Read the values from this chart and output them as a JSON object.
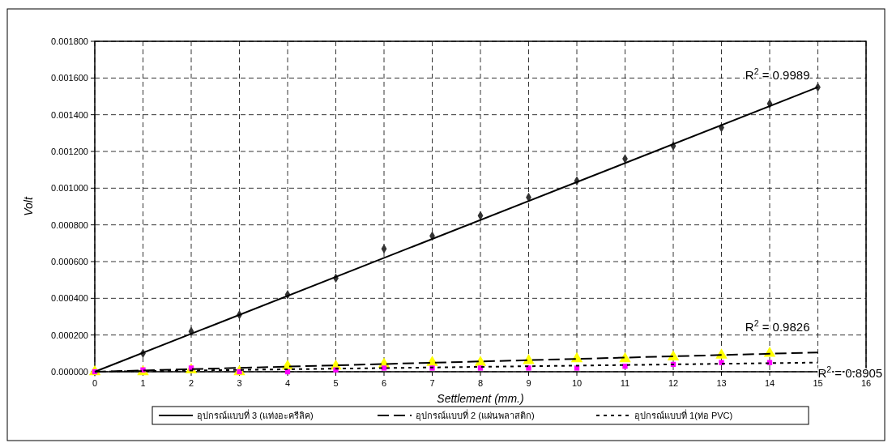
{
  "chart_data": {
    "type": "scatter",
    "xlabel": "Settlement (mm.)",
    "ylabel": "Volt",
    "xlim": [
      0,
      16
    ],
    "xticks": [
      0,
      1,
      2,
      3,
      4,
      5,
      6,
      7,
      8,
      9,
      10,
      11,
      12,
      13,
      14,
      15,
      16
    ],
    "ylim": [
      0,
      0.0018
    ],
    "yticks": [
      {
        "value": 0,
        "label": "0.000000"
      },
      {
        "value": 0.0002,
        "label": "0.000200"
      },
      {
        "value": 0.0004,
        "label": "0.000400"
      },
      {
        "value": 0.0006,
        "label": "0.000600"
      },
      {
        "value": 0.0008,
        "label": "0.000800"
      },
      {
        "value": 0.001,
        "label": "0.001000"
      },
      {
        "value": 0.0012,
        "label": "0.001200"
      },
      {
        "value": 0.0014,
        "label": "0.001400"
      },
      {
        "value": 0.0016,
        "label": "0.001600"
      },
      {
        "value": 0.0018,
        "label": "0.001800"
      }
    ],
    "grid": true,
    "legend": "bottom",
    "series": [
      {
        "marker": "diamond",
        "color": "#333333",
        "x": [
          0,
          1,
          2,
          3,
          4,
          5,
          6,
          7,
          8,
          9,
          10,
          11,
          12,
          13,
          14,
          15
        ],
        "values": [
          0,
          0.0001,
          0.00022,
          0.00031,
          0.00042,
          0.00051,
          0.00067,
          0.00074,
          0.00085,
          0.00095,
          0.00104,
          0.00116,
          0.00123,
          0.00133,
          0.00146,
          0.00155
        ]
      },
      {
        "marker": "triangle",
        "color": "#ffff00",
        "x": [
          0,
          1,
          2,
          3,
          4,
          5,
          6,
          7,
          8,
          9,
          10,
          11,
          12,
          13,
          14
        ],
        "values": [
          0,
          0,
          1e-05,
          0,
          3e-05,
          3e-05,
          4e-05,
          5e-05,
          5e-05,
          6e-05,
          7e-05,
          7e-05,
          8e-05,
          9e-05,
          0.0001
        ]
      },
      {
        "marker": "square",
        "color": "#ff00ff",
        "x": [
          0,
          1,
          2,
          3,
          4,
          5,
          6,
          7,
          8,
          9,
          10,
          11,
          12,
          13,
          14
        ],
        "values": [
          0,
          1e-05,
          2e-05,
          0,
          0,
          1e-05,
          2e-05,
          2e-05,
          2e-05,
          2e-05,
          2e-05,
          3e-05,
          4e-05,
          5e-05,
          5e-05
        ]
      },
      {
        "type": "line",
        "name": "อุปกรณ์แบบที่ 3 (แท่งอะครีลิค)",
        "color": "#000000",
        "line_style": "solid",
        "x": [
          0,
          15
        ],
        "values": [
          0,
          0.00155
        ]
      },
      {
        "type": "line",
        "name": "อุปกรณ์แบบที่ 2 (แผ่นพลาสติก)",
        "color": "#000000",
        "line_style": "dashed",
        "x": [
          0,
          15
        ],
        "values": [
          0,
          0.000105
        ]
      },
      {
        "type": "line",
        "name": "อุปกรณ์แบบที่ 1(ท่อ PVC)",
        "color": "#000000",
        "line_style": "dotted",
        "x": [
          0,
          15
        ],
        "values": [
          0,
          5e-05
        ]
      }
    ],
    "annotations": [
      "R$^{2}$ = 0.9989",
      "R$^{2}$ = 0.9826",
      "R$^{2}$ = 0.8905"
    ]
  }
}
